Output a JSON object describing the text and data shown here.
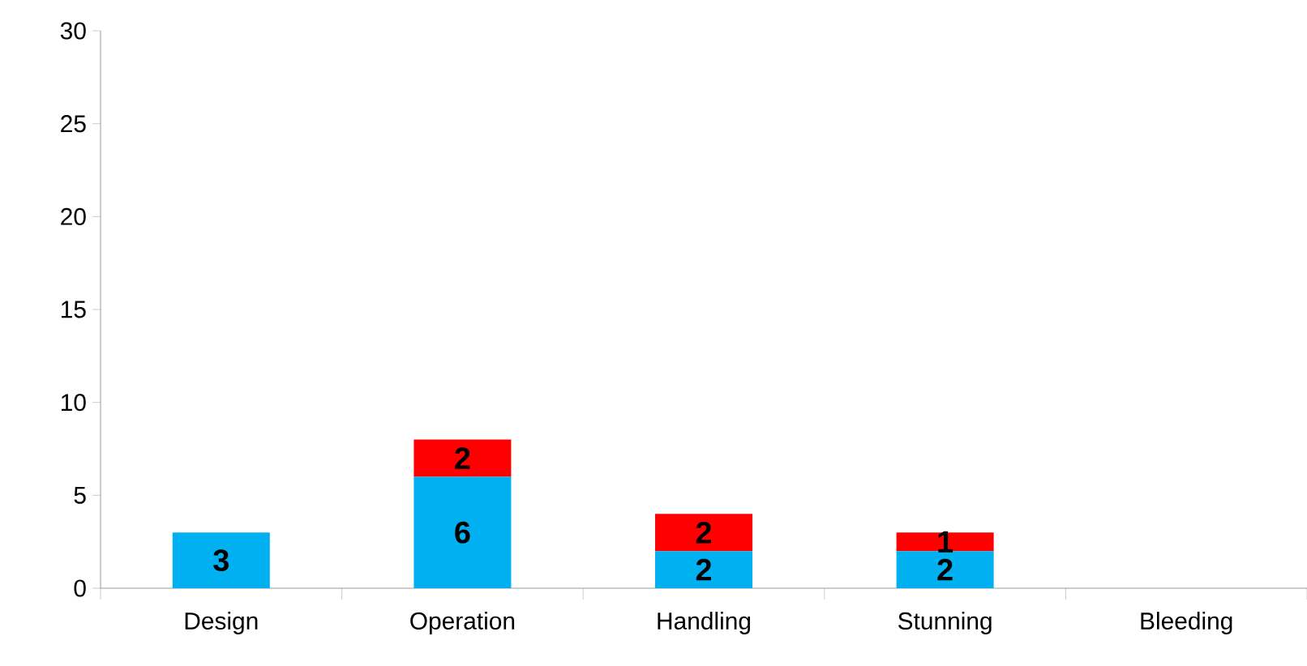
{
  "chart_data": {
    "type": "bar",
    "stacked": true,
    "categories": [
      "Design",
      "Operation",
      "Handling",
      "Stunning",
      "Bleeding"
    ],
    "series": [
      {
        "color": "#00b0f0",
        "values": [
          3,
          6,
          2,
          2,
          0
        ],
        "value_labels": [
          "3",
          "6",
          "2",
          "2",
          null
        ]
      },
      {
        "color": "#ff0000",
        "values": [
          0,
          2,
          2,
          1,
          0
        ],
        "value_labels": [
          null,
          "2",
          "2",
          "1",
          null
        ]
      }
    ],
    "ylim": [
      0,
      30
    ],
    "yticks": [
      0,
      5,
      10,
      15,
      20,
      25,
      30
    ]
  }
}
